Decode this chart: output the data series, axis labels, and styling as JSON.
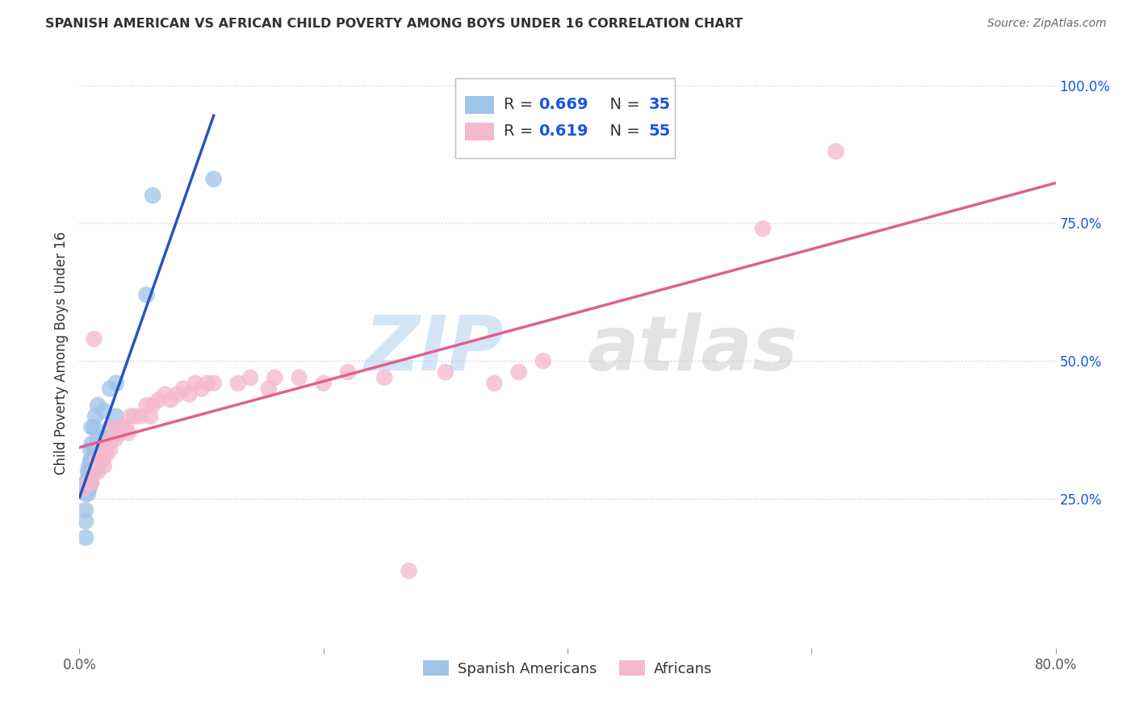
{
  "title": "SPANISH AMERICAN VS AFRICAN CHILD POVERTY AMONG BOYS UNDER 16 CORRELATION CHART",
  "source": "Source: ZipAtlas.com",
  "ylabel": "Child Poverty Among Boys Under 16",
  "watermark_zip": "ZIP",
  "watermark_atlas": "atlas",
  "legend_blue_r": "0.669",
  "legend_blue_n": "35",
  "legend_pink_r": "0.619",
  "legend_pink_n": "55",
  "legend_label_blue": "Spanish Americans",
  "legend_label_pink": "Africans",
  "xlim": [
    0.0,
    0.8
  ],
  "ylim": [
    -0.02,
    1.05
  ],
  "xticks": [
    0.0,
    0.2,
    0.4,
    0.6,
    0.8
  ],
  "xtick_labels": [
    "0.0%",
    "",
    "",
    "",
    "80.0%"
  ],
  "ytick_right_labels": [
    "25.0%",
    "50.0%",
    "75.0%",
    "100.0%"
  ],
  "ytick_right_vals": [
    0.25,
    0.5,
    0.75,
    1.0
  ],
  "blue_color": "#9ec4e8",
  "pink_color": "#f5b8cc",
  "line_blue": "#2855c0",
  "line_pink": "#e06090",
  "title_color": "#333333",
  "source_color": "#666666",
  "legend_r_color": "#1a56db",
  "grid_color": "#cccccc",
  "blue_scatter_x": [
    0.005,
    0.005,
    0.005,
    0.005,
    0.005,
    0.007,
    0.007,
    0.007,
    0.008,
    0.008,
    0.008,
    0.009,
    0.009,
    0.009,
    0.009,
    0.01,
    0.01,
    0.01,
    0.01,
    0.012,
    0.012,
    0.012,
    0.013,
    0.013,
    0.015,
    0.015,
    0.02,
    0.02,
    0.025,
    0.025,
    0.03,
    0.03,
    0.055,
    0.06,
    0.11
  ],
  "blue_scatter_y": [
    0.18,
    0.21,
    0.23,
    0.26,
    0.28,
    0.26,
    0.28,
    0.3,
    0.27,
    0.29,
    0.31,
    0.28,
    0.3,
    0.32,
    0.34,
    0.3,
    0.32,
    0.35,
    0.38,
    0.3,
    0.34,
    0.38,
    0.34,
    0.4,
    0.36,
    0.42,
    0.36,
    0.41,
    0.38,
    0.45,
    0.4,
    0.46,
    0.62,
    0.8,
    0.83
  ],
  "pink_scatter_x": [
    0.005,
    0.008,
    0.01,
    0.012,
    0.012,
    0.013,
    0.014,
    0.015,
    0.015,
    0.017,
    0.018,
    0.019,
    0.02,
    0.022,
    0.023,
    0.024,
    0.025,
    0.027,
    0.028,
    0.03,
    0.032,
    0.035,
    0.038,
    0.04,
    0.042,
    0.045,
    0.05,
    0.055,
    0.058,
    0.06,
    0.065,
    0.07,
    0.075,
    0.08,
    0.085,
    0.09,
    0.095,
    0.1,
    0.105,
    0.11,
    0.13,
    0.14,
    0.155,
    0.16,
    0.18,
    0.2,
    0.22,
    0.25,
    0.27,
    0.3,
    0.34,
    0.36,
    0.38,
    0.56,
    0.62
  ],
  "pink_scatter_y": [
    0.27,
    0.28,
    0.28,
    0.3,
    0.54,
    0.3,
    0.32,
    0.3,
    0.32,
    0.32,
    0.34,
    0.32,
    0.31,
    0.33,
    0.35,
    0.35,
    0.34,
    0.36,
    0.38,
    0.36,
    0.37,
    0.38,
    0.38,
    0.37,
    0.4,
    0.4,
    0.4,
    0.42,
    0.4,
    0.42,
    0.43,
    0.44,
    0.43,
    0.44,
    0.45,
    0.44,
    0.46,
    0.45,
    0.46,
    0.46,
    0.46,
    0.47,
    0.45,
    0.47,
    0.47,
    0.46,
    0.48,
    0.47,
    0.12,
    0.48,
    0.46,
    0.48,
    0.5,
    0.74,
    0.88
  ],
  "figsize": [
    14.06,
    8.92
  ],
  "dpi": 100
}
